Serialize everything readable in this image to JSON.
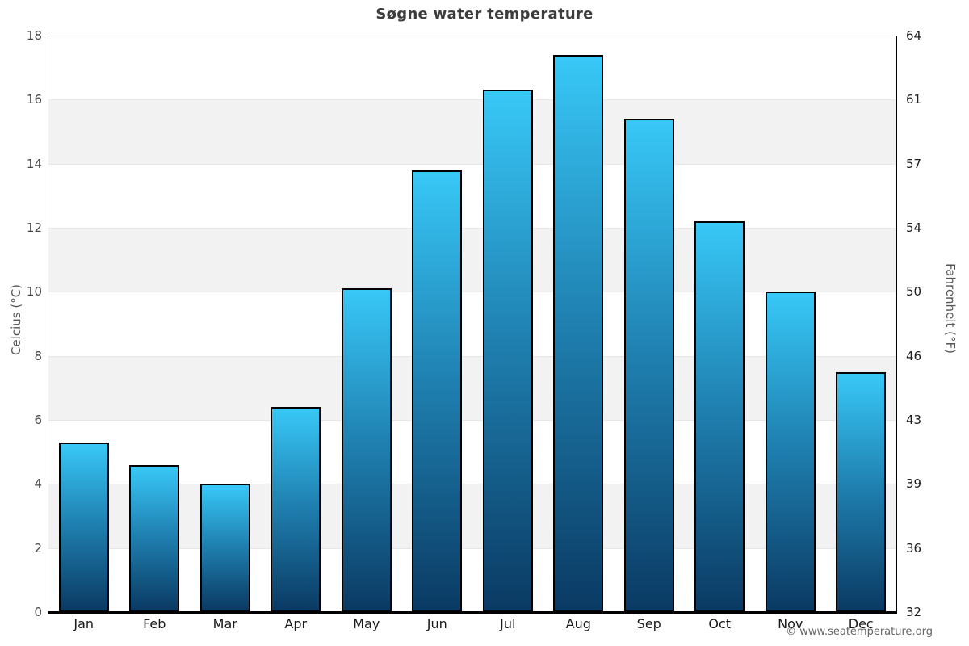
{
  "title": "Søgne water temperature",
  "footer": "© www.seatemperature.org",
  "colors": {
    "bar_top": "#38c8f7",
    "bar_mid": "#1f80b0",
    "bar_bottom": "#0a3a63",
    "bar_border": "#000000",
    "band_gray": "#f2f2f2",
    "band_white": "#ffffff",
    "gridline": "#e7e7e7",
    "axis_left": "#999999",
    "axis_right": "#000000",
    "axis_bottom": "#000000"
  },
  "chart_data": {
    "type": "bar",
    "title": "Søgne water temperature",
    "categories": [
      "Jan",
      "Feb",
      "Mar",
      "Apr",
      "May",
      "Jun",
      "Jul",
      "Aug",
      "Sep",
      "Oct",
      "Nov",
      "Dec"
    ],
    "values": [
      5.3,
      4.6,
      4.0,
      6.4,
      10.1,
      13.8,
      16.3,
      17.4,
      15.4,
      12.2,
      10.0,
      7.5
    ],
    "ylabel_left": "Celcius (°C)",
    "ylabel_right": "Fahrenheit (°F)",
    "ylim": [
      0,
      18
    ],
    "yticks_left": [
      0,
      2,
      4,
      6,
      8,
      10,
      12,
      14,
      16,
      18
    ],
    "yticks_right": [
      32,
      36,
      39,
      43,
      46,
      50,
      54,
      57,
      61,
      64
    ],
    "legend": "none",
    "grid": "alternating horizontal gray/white bands every 2°C with light gridlines"
  }
}
